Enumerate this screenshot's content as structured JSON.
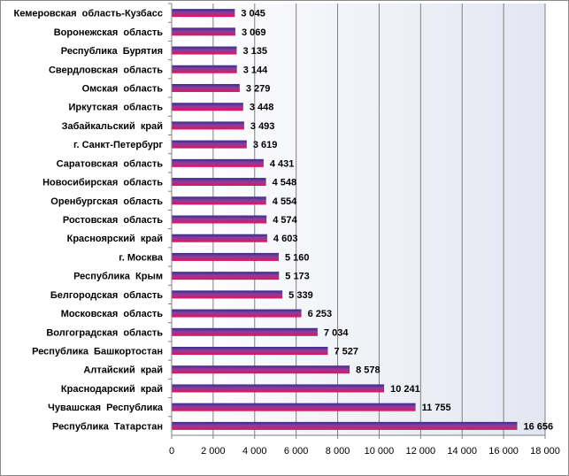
{
  "chart_data": {
    "type": "bar",
    "orientation": "horizontal",
    "categories": [
      "Кемеровская  область-Кузбасс",
      "Воронежская  область",
      "Республика  Бурятия",
      "Свердловская  область",
      "Омская  область",
      "Иркутская  область",
      "Забайкальский  край",
      "г. Санкт-Петербург",
      "Саратовская  область",
      "Новосибирская  область",
      "Оренбургская  область",
      "Ростовская  область",
      "Красноярский  край",
      "г. Москва",
      "Республика  Крым",
      "Белгородская  область",
      "Московская  область",
      "Волгоградская  область",
      "Республика  Башкортостан",
      "Алтайский  край",
      "Краснодарский  край",
      "Чувашская  Республика",
      "Республика  Татарстан"
    ],
    "values": [
      3045,
      3069,
      3135,
      3144,
      3279,
      3448,
      3493,
      3619,
      4431,
      4548,
      4554,
      4574,
      4603,
      5160,
      5173,
      5339,
      6253,
      7034,
      7527,
      8578,
      10241,
      11755,
      16656
    ],
    "value_labels": [
      "3 045",
      "3 069",
      "3 135",
      "3 144",
      "3 279",
      "3 448",
      "3 493",
      "3 619",
      "4 431",
      "4 548",
      "4 554",
      "4 574",
      "4 603",
      "5 160",
      "5 173",
      "5 339",
      "6 253",
      "7 034",
      "7 527",
      "8 578",
      "10 241",
      "11 755",
      "16 656"
    ],
    "xlim": [
      0,
      18000
    ],
    "xticks": [
      0,
      2000,
      4000,
      6000,
      8000,
      10000,
      12000,
      14000,
      16000,
      18000
    ],
    "xtick_labels": [
      "0",
      "2 000",
      "4 000",
      "6 000",
      "8 000",
      "10 000",
      "12 000",
      "14 000",
      "16 000",
      "18 000"
    ],
    "grid": "vertical",
    "legend": "none",
    "title": "",
    "xlabel": "",
    "ylabel": "",
    "colors": {
      "bar_top": "#3b2a8f",
      "bar_bottom": "#e8105a",
      "bar_mid": "#8a3f9e",
      "plot_bg_left": "#ffffff",
      "plot_bg_right": "#e3e6f2",
      "grid": "#7f7f7f",
      "axis": "#7f7f7f"
    }
  }
}
